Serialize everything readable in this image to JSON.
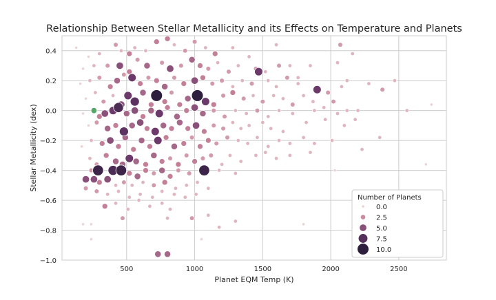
{
  "chart_data": {
    "type": "scatter",
    "title": "Relationship Between Stellar Metallicity and its Effects on Temperature and Planets",
    "xlabel": "Planet EQM Temp (K)",
    "ylabel": "Stellar Metallicity (dex)",
    "xlim": [
      25,
      2850
    ],
    "ylim": [
      -1.0,
      0.5
    ],
    "x_ticks": [
      500,
      1000,
      1500,
      2000,
      2500
    ],
    "y_ticks": [
      -1.0,
      -0.8,
      -0.6,
      -0.4,
      -0.2,
      0.0,
      0.2,
      0.4
    ],
    "x_tick_labels": [
      "500",
      "1000",
      "1500",
      "2000",
      "2500"
    ],
    "y_tick_labels": [
      "−1.0",
      "−0.8",
      "−0.6",
      "−0.4",
      "−0.2",
      "0.0",
      "0.2",
      "0.4"
    ],
    "grid": true,
    "legend": {
      "title": "Number of Planets",
      "placement": "lower-right",
      "entries": [
        {
          "label": "0.0",
          "value": 0
        },
        {
          "label": "2.5",
          "value": 2.5
        },
        {
          "label": "5.0",
          "value": 5
        },
        {
          "label": "7.5",
          "value": 7.5
        },
        {
          "label": "10.0",
          "value": 10
        }
      ]
    },
    "colors": {
      "low": "#ecd2d2",
      "mid": "#c47f98",
      "high": "#6b3a6b",
      "max": "#2d1e3e",
      "highlight": "#55a868",
      "grid": "#cccccc"
    },
    "highlight_point": {
      "x": 260,
      "y": 0.0,
      "planets": 1
    },
    "points": [
      [
        130,
        0.42,
        0
      ],
      [
        220,
        0.36,
        0
      ],
      [
        300,
        0.38,
        1
      ],
      [
        420,
        0.44,
        2
      ],
      [
        460,
        0.4,
        1
      ],
      [
        520,
        0.38,
        3
      ],
      [
        560,
        0.42,
        1
      ],
      [
        640,
        0.4,
        1
      ],
      [
        720,
        0.46,
        3
      ],
      [
        800,
        0.48,
        3
      ],
      [
        850,
        0.44,
        1
      ],
      [
        930,
        0.4,
        2
      ],
      [
        1000,
        0.46,
        2
      ],
      [
        1080,
        0.42,
        1
      ],
      [
        1150,
        0.38,
        3
      ],
      [
        1280,
        0.42,
        1
      ],
      [
        1400,
        0.36,
        1
      ],
      [
        1600,
        0.44,
        1
      ],
      [
        1700,
        0.3,
        1
      ],
      [
        2070,
        0.44,
        2
      ],
      [
        2160,
        0.38,
        1
      ],
      [
        180,
        0.28,
        0
      ],
      [
        260,
        0.3,
        1
      ],
      [
        360,
        0.3,
        2
      ],
      [
        450,
        0.3,
        5
      ],
      [
        520,
        0.26,
        3
      ],
      [
        580,
        0.34,
        2
      ],
      [
        650,
        0.3,
        4
      ],
      [
        760,
        0.32,
        2
      ],
      [
        820,
        0.28,
        5
      ],
      [
        900,
        0.3,
        2
      ],
      [
        980,
        0.34,
        4
      ],
      [
        1040,
        0.3,
        3
      ],
      [
        1100,
        0.28,
        2
      ],
      [
        1170,
        0.32,
        1
      ],
      [
        1250,
        0.26,
        2
      ],
      [
        1320,
        0.3,
        1
      ],
      [
        1450,
        0.28,
        2
      ],
      [
        1520,
        0.26,
        1
      ],
      [
        1620,
        0.3,
        2
      ],
      [
        1760,
        0.22,
        1
      ],
      [
        1850,
        0.3,
        1
      ],
      [
        2050,
        0.32,
        1
      ],
      [
        2120,
        0.2,
        1
      ],
      [
        2280,
        0.18,
        1
      ],
      [
        160,
        0.18,
        0
      ],
      [
        230,
        0.2,
        1
      ],
      [
        300,
        0.22,
        2
      ],
      [
        380,
        0.16,
        3
      ],
      [
        430,
        0.2,
        4
      ],
      [
        480,
        0.24,
        2
      ],
      [
        540,
        0.22,
        6
      ],
      [
        600,
        0.18,
        3
      ],
      [
        660,
        0.22,
        2
      ],
      [
        720,
        0.2,
        3
      ],
      [
        780,
        0.16,
        4
      ],
      [
        850,
        0.22,
        2
      ],
      [
        920,
        0.18,
        3
      ],
      [
        1000,
        0.2,
        5
      ],
      [
        1060,
        0.22,
        3
      ],
      [
        1130,
        0.18,
        2
      ],
      [
        1200,
        0.2,
        2
      ],
      [
        1280,
        0.16,
        1
      ],
      [
        1350,
        0.2,
        1
      ],
      [
        1420,
        0.18,
        2
      ],
      [
        1470,
        0.26,
        6
      ],
      [
        1540,
        0.2,
        1
      ],
      [
        1600,
        0.16,
        1
      ],
      [
        1680,
        0.22,
        2
      ],
      [
        1760,
        0.18,
        1
      ],
      [
        1900,
        0.14,
        6
      ],
      [
        1980,
        0.12,
        2
      ],
      [
        2080,
        0.16,
        1
      ],
      [
        2380,
        0.14,
        2
      ],
      [
        2470,
        0.2,
        1
      ],
      [
        200,
        0.08,
        0
      ],
      [
        270,
        0.12,
        1
      ],
      [
        330,
        0.06,
        2
      ],
      [
        400,
        0.1,
        1
      ],
      [
        460,
        0.04,
        5
      ],
      [
        510,
        0.1,
        6
      ],
      [
        560,
        0.06,
        7
      ],
      [
        620,
        0.12,
        4
      ],
      [
        680,
        0.04,
        3
      ],
      [
        720,
        0.1,
        10
      ],
      [
        780,
        0.06,
        3
      ],
      [
        830,
        0.12,
        2
      ],
      [
        890,
        0.04,
        3
      ],
      [
        950,
        0.08,
        4
      ],
      [
        1020,
        0.1,
        10
      ],
      [
        1080,
        0.06,
        6
      ],
      [
        1140,
        0.04,
        3
      ],
      [
        1210,
        0.1,
        2
      ],
      [
        1280,
        0.12,
        3
      ],
      [
        1360,
        0.08,
        2
      ],
      [
        1430,
        0.1,
        1
      ],
      [
        1500,
        0.06,
        2
      ],
      [
        1580,
        0.1,
        1
      ],
      [
        1650,
        0.08,
        1
      ],
      [
        1720,
        0.04,
        2
      ],
      [
        1800,
        0.1,
        1
      ],
      [
        1870,
        0.06,
        1
      ],
      [
        1950,
        0.02,
        1
      ],
      [
        2020,
        0.06,
        2
      ],
      [
        180,
        -0.02,
        0
      ],
      [
        300,
        -0.04,
        3
      ],
      [
        340,
        -0.02,
        5
      ],
      [
        400,
        0.0,
        6
      ],
      [
        440,
        0.02,
        8
      ],
      [
        500,
        -0.02,
        4
      ],
      [
        560,
        0.0,
        5
      ],
      [
        620,
        -0.04,
        3
      ],
      [
        680,
        0.0,
        4
      ],
      [
        740,
        -0.02,
        6
      ],
      [
        800,
        0.02,
        3
      ],
      [
        870,
        -0.04,
        4
      ],
      [
        940,
        0.0,
        3
      ],
      [
        1000,
        0.02,
        5
      ],
      [
        1060,
        -0.02,
        4
      ],
      [
        1140,
        0.0,
        2
      ],
      [
        1220,
        -0.04,
        2
      ],
      [
        1300,
        0.0,
        1
      ],
      [
        1380,
        -0.02,
        1
      ],
      [
        1460,
        0.0,
        2
      ],
      [
        1540,
        -0.04,
        1
      ],
      [
        1620,
        0.0,
        1
      ],
      [
        1720,
        -0.02,
        1
      ],
      [
        1880,
        0.0,
        1
      ],
      [
        2050,
        -0.02,
        1
      ],
      [
        2120,
        0.0,
        1
      ],
      [
        2200,
        0.0,
        1
      ],
      [
        2560,
        0.0,
        1
      ],
      [
        2740,
        0.04,
        0
      ],
      [
        220,
        -0.1,
        0
      ],
      [
        280,
        -0.08,
        2
      ],
      [
        360,
        -0.12,
        4
      ],
      [
        420,
        -0.1,
        3
      ],
      [
        480,
        -0.14,
        7
      ],
      [
        540,
        -0.1,
        4
      ],
      [
        600,
        -0.08,
        5
      ],
      [
        650,
        -0.12,
        3
      ],
      [
        710,
        -0.14,
        6
      ],
      [
        770,
        -0.1,
        4
      ],
      [
        830,
        -0.12,
        3
      ],
      [
        890,
        -0.08,
        4
      ],
      [
        950,
        -0.12,
        3
      ],
      [
        1010,
        -0.1,
        5
      ],
      [
        1070,
        -0.14,
        3
      ],
      [
        1140,
        -0.1,
        2
      ],
      [
        1210,
        -0.12,
        2
      ],
      [
        1280,
        -0.08,
        1
      ],
      [
        1340,
        -0.12,
        1
      ],
      [
        1400,
        -0.1,
        1
      ],
      [
        1500,
        -0.08,
        1
      ],
      [
        1560,
        -0.12,
        1
      ],
      [
        1650,
        -0.14,
        1
      ],
      [
        1820,
        -0.08,
        1
      ],
      [
        1960,
        -0.06,
        1
      ],
      [
        2100,
        -0.1,
        1
      ],
      [
        2180,
        -0.06,
        1
      ],
      [
        170,
        -0.24,
        0
      ],
      [
        240,
        -0.2,
        1
      ],
      [
        320,
        -0.22,
        3
      ],
      [
        380,
        -0.2,
        5
      ],
      [
        440,
        -0.24,
        3
      ],
      [
        490,
        -0.18,
        4
      ],
      [
        550,
        -0.26,
        3
      ],
      [
        610,
        -0.2,
        4
      ],
      [
        670,
        -0.24,
        3
      ],
      [
        730,
        -0.2,
        6
      ],
      [
        790,
        -0.18,
        3
      ],
      [
        850,
        -0.24,
        4
      ],
      [
        920,
        -0.22,
        3
      ],
      [
        980,
        -0.18,
        2
      ],
      [
        1040,
        -0.24,
        3
      ],
      [
        1100,
        -0.2,
        3
      ],
      [
        1160,
        -0.22,
        2
      ],
      [
        1240,
        -0.18,
        2
      ],
      [
        1320,
        -0.2,
        1
      ],
      [
        1390,
        -0.22,
        1
      ],
      [
        1460,
        -0.18,
        1
      ],
      [
        1540,
        -0.24,
        1
      ],
      [
        1620,
        -0.2,
        1
      ],
      [
        1700,
        -0.22,
        1
      ],
      [
        1800,
        -0.18,
        1
      ],
      [
        1880,
        -0.22,
        1
      ],
      [
        2010,
        -0.2,
        1
      ],
      [
        2230,
        -0.26,
        1
      ],
      [
        2360,
        -0.18,
        1
      ],
      [
        230,
        -0.32,
        1
      ],
      [
        280,
        -0.36,
        2
      ],
      [
        350,
        -0.3,
        3
      ],
      [
        420,
        -0.34,
        4
      ],
      [
        470,
        -0.36,
        4
      ],
      [
        520,
        -0.32,
        6
      ],
      [
        570,
        -0.34,
        4
      ],
      [
        640,
        -0.36,
        3
      ],
      [
        700,
        -0.3,
        4
      ],
      [
        760,
        -0.34,
        3
      ],
      [
        820,
        -0.32,
        2
      ],
      [
        880,
        -0.36,
        3
      ],
      [
        940,
        -0.3,
        2
      ],
      [
        1000,
        -0.34,
        3
      ],
      [
        1060,
        -0.32,
        2
      ],
      [
        1120,
        -0.3,
        2
      ],
      [
        1200,
        -0.36,
        1
      ],
      [
        1260,
        -0.3,
        1
      ],
      [
        1340,
        -0.34,
        1
      ],
      [
        1450,
        -0.3,
        1
      ],
      [
        1520,
        -0.28,
        1
      ],
      [
        1600,
        -0.32,
        1
      ],
      [
        1700,
        -0.3,
        1
      ],
      [
        1850,
        -0.28,
        1
      ],
      [
        240,
        -0.4,
        2
      ],
      [
        290,
        -0.4,
        9
      ],
      [
        360,
        -0.46,
        5
      ],
      [
        400,
        -0.4,
        8
      ],
      [
        460,
        -0.4,
        9
      ],
      [
        520,
        -0.42,
        3
      ],
      [
        580,
        -0.44,
        4
      ],
      [
        640,
        -0.4,
        3
      ],
      [
        700,
        -0.42,
        2
      ],
      [
        760,
        -0.4,
        4
      ],
      [
        820,
        -0.44,
        3
      ],
      [
        880,
        -0.4,
        2
      ],
      [
        960,
        -0.42,
        2
      ],
      [
        1070,
        -0.4,
        9
      ],
      [
        1180,
        -0.4,
        1
      ],
      [
        1300,
        -0.42,
        1
      ],
      [
        2030,
        -0.4,
        0
      ],
      [
        2700,
        -0.36,
        0
      ],
      [
        200,
        -0.46,
        5
      ],
      [
        260,
        -0.46,
        5
      ],
      [
        300,
        -0.48,
        3
      ],
      [
        350,
        -0.46,
        2
      ],
      [
        420,
        -0.5,
        1
      ],
      [
        480,
        -0.48,
        2
      ],
      [
        540,
        -0.5,
        1
      ],
      [
        620,
        -0.48,
        1
      ],
      [
        700,
        -0.5,
        2
      ],
      [
        780,
        -0.48,
        3
      ],
      [
        860,
        -0.52,
        1
      ],
      [
        940,
        -0.5,
        1
      ],
      [
        1020,
        -0.48,
        1
      ],
      [
        1100,
        -0.52,
        1
      ],
      [
        200,
        -0.52,
        2
      ],
      [
        280,
        -0.54,
        2
      ],
      [
        360,
        -0.56,
        1
      ],
      [
        440,
        -0.54,
        1
      ],
      [
        520,
        -0.58,
        1
      ],
      [
        600,
        -0.56,
        1
      ],
      [
        690,
        -0.58,
        1
      ],
      [
        760,
        -0.54,
        1
      ],
      [
        850,
        -0.56,
        1
      ],
      [
        930,
        -0.58,
        1
      ],
      [
        1010,
        -0.56,
        1
      ],
      [
        340,
        -0.64,
        3
      ],
      [
        420,
        -0.62,
        1
      ],
      [
        510,
        -0.66,
        1
      ],
      [
        590,
        -0.6,
        1
      ],
      [
        670,
        -0.64,
        1
      ],
      [
        760,
        -0.62,
        1
      ],
      [
        820,
        -0.66,
        1
      ],
      [
        470,
        -0.72,
        2
      ],
      [
        800,
        -0.72,
        1
      ],
      [
        980,
        -0.72,
        2
      ],
      [
        1100,
        -0.7,
        1
      ],
      [
        1300,
        -0.74,
        1
      ],
      [
        180,
        -0.76,
        0
      ],
      [
        240,
        -0.76,
        0
      ],
      [
        1180,
        -0.78,
        1
      ],
      [
        1800,
        -0.76,
        0
      ],
      [
        240,
        -0.86,
        0
      ],
      [
        1050,
        -0.86,
        0
      ],
      [
        730,
        -0.96,
        4
      ],
      [
        800,
        -0.96,
        4
      ]
    ]
  }
}
